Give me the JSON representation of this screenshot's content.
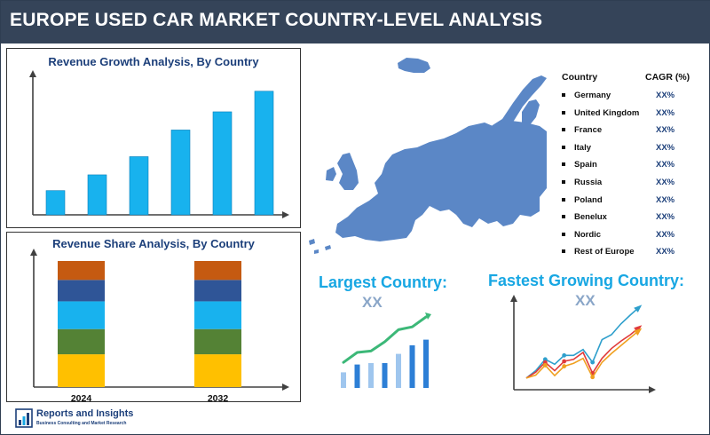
{
  "header": {
    "title": "EUROPE USED CAR MARKET COUNTRY-LEVEL ANALYSIS"
  },
  "growth_panel": {
    "title": "Revenue Growth Analysis, By Country"
  },
  "share_panel": {
    "title": "Revenue Share Analysis, By Country"
  },
  "largest": {
    "label": "Largest Country:",
    "value": "XX"
  },
  "fastest": {
    "label": "Fastest Growing Country:",
    "value": "XX"
  },
  "cagr_table": {
    "col_country": "Country",
    "col_cagr": "CAGR (%)",
    "rows": [
      {
        "country": "Germany",
        "cagr": "XX%"
      },
      {
        "country": "United Kingdom",
        "cagr": "XX%"
      },
      {
        "country": "France",
        "cagr": "XX%"
      },
      {
        "country": "Italy",
        "cagr": "XX%"
      },
      {
        "country": "Spain",
        "cagr": "XX%"
      },
      {
        "country": "Russia",
        "cagr": "XX%"
      },
      {
        "country": "Poland",
        "cagr": "XX%"
      },
      {
        "country": "Benelux",
        "cagr": "XX%"
      },
      {
        "country": "Nordic",
        "cagr": "XX%"
      },
      {
        "country": "Rest of Europe",
        "cagr": "XX%"
      }
    ]
  },
  "logo": {
    "name": "Reports and Insights",
    "tagline": "Business Consulting and Market Research"
  },
  "colors": {
    "header_bg": "#354459",
    "accent_blue": "#18a7e3",
    "title_navy": "#1c3f7a",
    "map_blue": "#5b87c6"
  },
  "chart_data": [
    {
      "type": "bar",
      "title": "Revenue Growth Analysis, By Country",
      "categories": [
        "1",
        "2",
        "3",
        "4",
        "5",
        "6"
      ],
      "values": [
        20,
        33,
        48,
        70,
        85,
        102
      ],
      "ylim": [
        0,
        115
      ],
      "bar_color": "#18b2ee",
      "axis_labels_shown": false
    },
    {
      "type": "bar",
      "stacked": true,
      "title": "Revenue Share Analysis, By Country",
      "categories": [
        "2024",
        "2032"
      ],
      "series": [
        {
          "color": "#ffc000",
          "values": [
            26,
            26
          ]
        },
        {
          "color": "#548235",
          "values": [
            20,
            20
          ]
        },
        {
          "color": "#18b2ee",
          "values": [
            22,
            22
          ]
        },
        {
          "color": "#2f5597",
          "values": [
            17,
            17
          ]
        },
        {
          "color": "#c55a11",
          "values": [
            15,
            15
          ]
        }
      ],
      "ylim": [
        0,
        100
      ]
    },
    {
      "type": "bar",
      "title": "Largest Country:",
      "categories": [
        "1",
        "2",
        "3",
        "4",
        "5",
        "6",
        "7"
      ],
      "values": [
        22,
        33,
        35,
        35,
        48,
        60,
        68
      ],
      "ylim": [
        0,
        100
      ],
      "trend_line": [
        36,
        50,
        52,
        65,
        82,
        86,
        100
      ],
      "trend_color": "#3cb878"
    },
    {
      "type": "line",
      "title": "Fastest Growing Country:",
      "x": [
        0,
        1,
        2,
        3,
        4,
        5,
        6,
        7,
        8,
        9,
        10,
        11,
        12
      ],
      "series": [
        {
          "color": "#2e9fcc",
          "values": [
            20,
            35,
            58,
            48,
            66,
            66,
            78,
            52,
            98,
            108,
            130,
            148,
            165
          ]
        },
        {
          "color": "#e03b3b",
          "values": [
            20,
            32,
            52,
            35,
            54,
            58,
            72,
            30,
            60,
            80,
            95,
            108,
            124
          ]
        },
        {
          "color": "#f0a020",
          "values": [
            20,
            26,
            46,
            25,
            44,
            50,
            60,
            22,
            52,
            70,
            86,
            102,
            118
          ]
        }
      ],
      "ylim": [
        0,
        180
      ]
    }
  ]
}
